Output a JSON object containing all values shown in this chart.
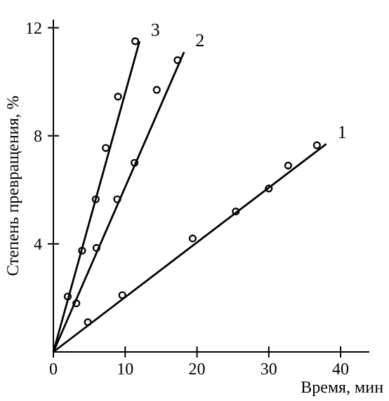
{
  "chart_data": {
    "type": "scatter",
    "xlabel": "Время, мин",
    "ylabel": "Степень превращения, %",
    "xlim": [
      0,
      44
    ],
    "ylim": [
      0,
      12.3
    ],
    "xticks": [
      0,
      10,
      20,
      30,
      40
    ],
    "yticks": [
      4,
      8,
      12
    ],
    "marker": "circle",
    "series": [
      {
        "name": "1",
        "color": "#000000",
        "x": [
          4.8,
          9.6,
          19.4,
          25.4,
          30,
          32.7,
          36.7
        ],
        "values": [
          1.1,
          2.1,
          4.2,
          5.2,
          6.05,
          6.9,
          7.65
        ]
      },
      {
        "name": "2",
        "color": "#000000",
        "x": [
          3.2,
          6,
          8.9,
          11.3,
          14.4,
          17.3
        ],
        "values": [
          1.8,
          3.85,
          5.65,
          7,
          9.7,
          10.8
        ]
      },
      {
        "name": "3",
        "color": "#000000",
        "x": [
          2,
          4,
          5.9,
          7.3,
          9,
          11.4
        ],
        "values": [
          2.05,
          3.75,
          5.65,
          7.55,
          9.45,
          11.5
        ]
      },
      {
        "type": "line",
        "color": "#000000",
        "marker": "none",
        "x": [
          0,
          38
        ],
        "values": [
          0,
          7.7
        ]
      },
      {
        "type": "line",
        "color": "#000000",
        "marker": "none",
        "x": [
          0,
          18.2
        ],
        "values": [
          0,
          11.1
        ]
      },
      {
        "type": "line",
        "color": "#000000",
        "marker": "none",
        "x": [
          0,
          12
        ],
        "values": [
          0,
          11.5
        ]
      }
    ]
  }
}
